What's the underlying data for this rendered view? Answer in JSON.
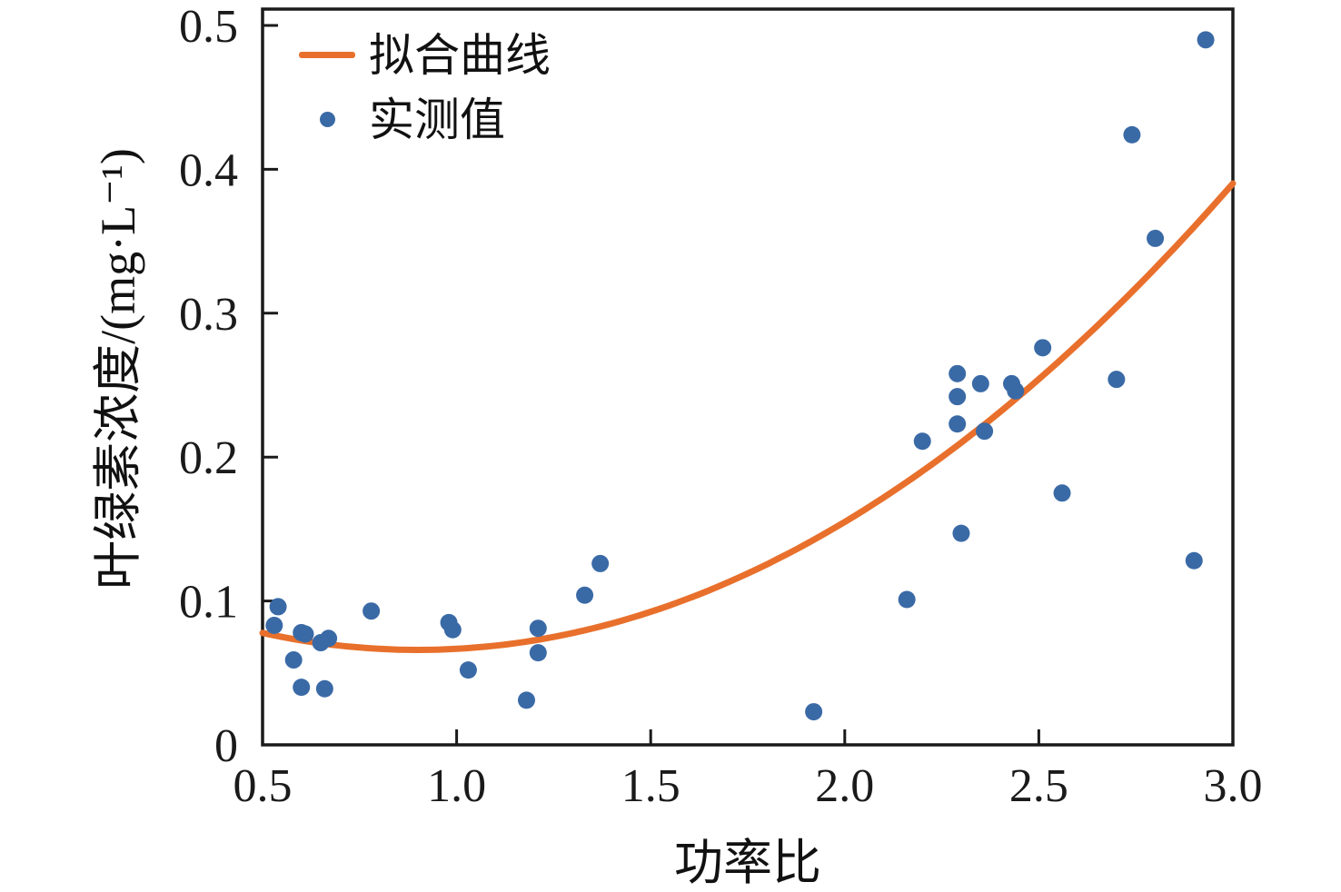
{
  "figure": {
    "background": "#ffffff"
  },
  "colors": {
    "fit_curve": "#E8702C",
    "measured": "#3A6AA6",
    "axis": "#1a1a1a"
  },
  "legend": {
    "items": [
      {
        "label": "拟合曲线",
        "marker": "line",
        "color": "#E8702C"
      },
      {
        "label": "实测值",
        "marker": "dot",
        "color": "#3A6AA6"
      }
    ]
  },
  "chart_data": {
    "type": "scatter",
    "title": "",
    "xlabel": "功率比",
    "ylabel": "叶绿素浓度/(mg·L⁻¹)",
    "xlim": [
      0.5,
      3.0
    ],
    "ylim": [
      0,
      0.5
    ],
    "x_ticks": [
      "0.5",
      "1.0",
      "1.5",
      "2.0",
      "2.5",
      "3.0"
    ],
    "x_tick_values": [
      0.5,
      1.0,
      1.5,
      2.0,
      2.5,
      3.0
    ],
    "y_ticks": [
      "0",
      "0.1",
      "0.2",
      "0.3",
      "0.4",
      "0.5"
    ],
    "y_tick_values": [
      0,
      0.1,
      0.2,
      0.3,
      0.4,
      0.5
    ],
    "grid": false,
    "legend_position": "upper-left",
    "series": [
      {
        "name": "实测值",
        "type": "scatter",
        "color": "#3A6AA6",
        "points": [
          [
            0.54,
            0.096
          ],
          [
            0.53,
            0.083
          ],
          [
            0.58,
            0.059
          ],
          [
            0.6,
            0.078
          ],
          [
            0.61,
            0.077
          ],
          [
            0.6,
            0.04
          ],
          [
            0.65,
            0.071
          ],
          [
            0.66,
            0.039
          ],
          [
            0.67,
            0.074
          ],
          [
            0.78,
            0.093
          ],
          [
            0.98,
            0.085
          ],
          [
            0.99,
            0.08
          ],
          [
            1.03,
            0.052
          ],
          [
            1.18,
            0.031
          ],
          [
            1.21,
            0.064
          ],
          [
            1.21,
            0.081
          ],
          [
            1.33,
            0.104
          ],
          [
            1.37,
            0.126
          ],
          [
            1.92,
            0.023
          ],
          [
            2.16,
            0.101
          ],
          [
            2.2,
            0.211
          ],
          [
            2.29,
            0.258
          ],
          [
            2.29,
            0.242
          ],
          [
            2.29,
            0.223
          ],
          [
            2.3,
            0.147
          ],
          [
            2.35,
            0.251
          ],
          [
            2.36,
            0.218
          ],
          [
            2.43,
            0.251
          ],
          [
            2.44,
            0.246
          ],
          [
            2.51,
            0.276
          ],
          [
            2.56,
            0.175
          ],
          [
            2.7,
            0.254
          ],
          [
            2.74,
            0.424
          ],
          [
            2.8,
            0.352
          ],
          [
            2.9,
            0.128
          ],
          [
            2.93,
            0.49
          ]
        ]
      },
      {
        "name": "拟合曲线",
        "type": "line",
        "color": "#E8702C",
        "fit": {
          "form": "quadratic",
          "a": 0.0735,
          "h": 0.9,
          "k": 0.066
        },
        "x_range": [
          0.5,
          3.0
        ],
        "endpoints_y": [
          0.078,
          0.39
        ]
      }
    ]
  }
}
